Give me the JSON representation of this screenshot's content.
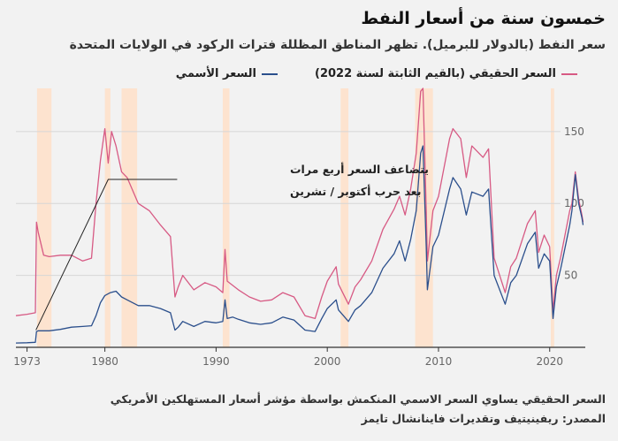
{
  "header": {
    "title": "خمسون سنة من أسعار النفط",
    "subtitle": "سعر النفط (بالدولار للبرميل). تظهر المناطق المظللة فترات الركود في الولايات المتحدة"
  },
  "footer": {
    "note": "السعر الحقيقي يساوي السعر الاسمي المنكمش بواسطة مؤشر أسعار المستهلكين الأمريكي",
    "source": "المصدر: ريفينيتيف وتقديرات فاينانشال تايمز"
  },
  "chart_data": {
    "type": "line",
    "xlim": [
      1972,
      2023.2
    ],
    "ylim": [
      0,
      180
    ],
    "x_ticks": [
      1973,
      1980,
      1990,
      2000,
      2010,
      2020
    ],
    "x_tick_labels": [
      "1973",
      "1980",
      "1990",
      "2000",
      "2010",
      "2020"
    ],
    "y_ticks": [
      50,
      100,
      150
    ],
    "y_tick_labels": [
      "50",
      "100",
      "150"
    ],
    "grid": "horizontal",
    "legend_position": "top-right",
    "annotation": {
      "text_line1": "يتضاعف السعر أربع مرات",
      "text_line2": "بعد حرب أكتوبر / تشرين",
      "point": [
        1973.8,
        12
      ]
    },
    "recessions": [
      [
        1973.9,
        1975.2
      ],
      [
        1980.0,
        1980.5
      ],
      [
        1981.5,
        1982.9
      ],
      [
        1990.6,
        1991.2
      ],
      [
        2001.2,
        2001.9
      ],
      [
        2007.9,
        2009.5
      ],
      [
        2020.1,
        2020.4
      ]
    ],
    "series": [
      {
        "name": "السعر الأسمي",
        "color": "#2b4f8c",
        "points": [
          [
            1972,
            3
          ],
          [
            1973,
            3.2
          ],
          [
            1973.75,
            3.5
          ],
          [
            1973.85,
            11
          ],
          [
            1974,
            11.5
          ],
          [
            1975,
            11.5
          ],
          [
            1976,
            12.5
          ],
          [
            1977,
            14
          ],
          [
            1978,
            14.5
          ],
          [
            1978.8,
            15
          ],
          [
            1979.2,
            22
          ],
          [
            1979.6,
            31
          ],
          [
            1980,
            36
          ],
          [
            1980.5,
            38
          ],
          [
            1981,
            39
          ],
          [
            1981.5,
            35
          ],
          [
            1982,
            33
          ],
          [
            1983,
            29
          ],
          [
            1984,
            29
          ],
          [
            1985,
            27
          ],
          [
            1985.9,
            24
          ],
          [
            1986.3,
            12
          ],
          [
            1986.6,
            14
          ],
          [
            1987,
            18
          ],
          [
            1988,
            14.5
          ],
          [
            1989,
            18
          ],
          [
            1990,
            17
          ],
          [
            1990.6,
            18
          ],
          [
            1990.8,
            33
          ],
          [
            1991,
            20
          ],
          [
            1991.5,
            21
          ],
          [
            1992,
            19.5
          ],
          [
            1993,
            17
          ],
          [
            1994,
            16
          ],
          [
            1995,
            17
          ],
          [
            1996,
            21
          ],
          [
            1997,
            19
          ],
          [
            1998,
            12
          ],
          [
            1998.9,
            11
          ],
          [
            1999.5,
            20
          ],
          [
            2000,
            27
          ],
          [
            2000.8,
            33
          ],
          [
            2001,
            26
          ],
          [
            2001.9,
            18
          ],
          [
            2002.5,
            26
          ],
          [
            2003,
            29
          ],
          [
            2004,
            38
          ],
          [
            2005,
            55
          ],
          [
            2006,
            65
          ],
          [
            2006.5,
            74
          ],
          [
            2007,
            60
          ],
          [
            2007.5,
            75
          ],
          [
            2008,
            95
          ],
          [
            2008.4,
            135
          ],
          [
            2008.6,
            140
          ],
          [
            2008.9,
            70
          ],
          [
            2009,
            40
          ],
          [
            2009.5,
            70
          ],
          [
            2010,
            78
          ],
          [
            2011,
            110
          ],
          [
            2011.3,
            118
          ],
          [
            2012,
            110
          ],
          [
            2012.5,
            92
          ],
          [
            2013,
            108
          ],
          [
            2014,
            105
          ],
          [
            2014.5,
            110
          ],
          [
            2015,
            50
          ],
          [
            2016,
            30
          ],
          [
            2016.5,
            45
          ],
          [
            2017,
            50
          ],
          [
            2018,
            72
          ],
          [
            2018.7,
            80
          ],
          [
            2019,
            55
          ],
          [
            2019.5,
            65
          ],
          [
            2020,
            60
          ],
          [
            2020.3,
            20
          ],
          [
            2020.6,
            42
          ],
          [
            2021,
            55
          ],
          [
            2021.8,
            85
          ],
          [
            2022,
            95
          ],
          [
            2022.3,
            120
          ],
          [
            2022.6,
            100
          ],
          [
            2022.9,
            90
          ],
          [
            2023,
            85
          ]
        ]
      },
      {
        "name": "السعر الحقيقي (بالقيم الثابتة لسنة 2022)",
        "color": "#d75a84",
        "points": [
          [
            1972,
            22
          ],
          [
            1973,
            23
          ],
          [
            1973.75,
            24
          ],
          [
            1973.85,
            87
          ],
          [
            1974,
            80
          ],
          [
            1974.5,
            64
          ],
          [
            1975,
            63
          ],
          [
            1976,
            64
          ],
          [
            1977,
            64
          ],
          [
            1978,
            60
          ],
          [
            1978.8,
            62
          ],
          [
            1979.2,
            100
          ],
          [
            1979.6,
            130
          ],
          [
            1980,
            152
          ],
          [
            1980.3,
            128
          ],
          [
            1980.6,
            150
          ],
          [
            1981,
            140
          ],
          [
            1981.5,
            122
          ],
          [
            1982,
            118
          ],
          [
            1983,
            100
          ],
          [
            1984,
            95
          ],
          [
            1985,
            85
          ],
          [
            1985.9,
            77
          ],
          [
            1986.3,
            35
          ],
          [
            1986.6,
            42
          ],
          [
            1987,
            50
          ],
          [
            1988,
            40
          ],
          [
            1989,
            45
          ],
          [
            1990,
            42
          ],
          [
            1990.6,
            38
          ],
          [
            1990.8,
            68
          ],
          [
            1991,
            46
          ],
          [
            1992,
            40
          ],
          [
            1993,
            35
          ],
          [
            1994,
            32
          ],
          [
            1995,
            33
          ],
          [
            1996,
            38
          ],
          [
            1997,
            35
          ],
          [
            1998,
            22
          ],
          [
            1998.9,
            20
          ],
          [
            1999.5,
            35
          ],
          [
            2000,
            46
          ],
          [
            2000.8,
            56
          ],
          [
            2001,
            44
          ],
          [
            2001.9,
            30
          ],
          [
            2002.5,
            42
          ],
          [
            2003,
            47
          ],
          [
            2004,
            60
          ],
          [
            2005,
            82
          ],
          [
            2006,
            96
          ],
          [
            2006.5,
            105
          ],
          [
            2007,
            92
          ],
          [
            2007.5,
            110
          ],
          [
            2008,
            135
          ],
          [
            2008.4,
            178
          ],
          [
            2008.6,
            180
          ],
          [
            2008.9,
            95
          ],
          [
            2009,
            60
          ],
          [
            2009.5,
            95
          ],
          [
            2010,
            105
          ],
          [
            2011,
            145
          ],
          [
            2011.3,
            152
          ],
          [
            2012,
            145
          ],
          [
            2012.5,
            118
          ],
          [
            2013,
            140
          ],
          [
            2014,
            132
          ],
          [
            2014.5,
            138
          ],
          [
            2015,
            62
          ],
          [
            2016,
            38
          ],
          [
            2016.5,
            56
          ],
          [
            2017,
            62
          ],
          [
            2018,
            86
          ],
          [
            2018.7,
            95
          ],
          [
            2019,
            66
          ],
          [
            2019.5,
            78
          ],
          [
            2020,
            70
          ],
          [
            2020.3,
            25
          ],
          [
            2020.6,
            50
          ],
          [
            2021,
            63
          ],
          [
            2021.8,
            95
          ],
          [
            2022,
            100
          ],
          [
            2022.3,
            122
          ],
          [
            2022.6,
            103
          ],
          [
            2022.9,
            92
          ],
          [
            2023,
            87
          ]
        ]
      }
    ]
  }
}
